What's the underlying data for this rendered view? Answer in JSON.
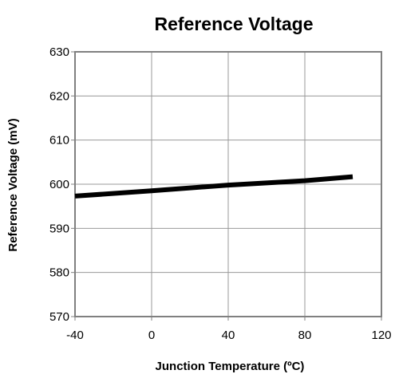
{
  "chart_data": {
    "type": "line",
    "title": "Reference Voltage",
    "xlabel": "Junction Temperature (ºC)",
    "ylabel": "Reference Voltage (mV)",
    "xlim": [
      -40,
      120
    ],
    "ylim": [
      570,
      630
    ],
    "xticks": [
      "-40",
      "0",
      "40",
      "80",
      "120"
    ],
    "yticks": [
      "570",
      "580",
      "590",
      "600",
      "610",
      "620",
      "630"
    ],
    "grid": true,
    "series": [
      {
        "x": [
          -40,
          0,
          40,
          80,
          105
        ],
        "y": [
          597.3,
          598.5,
          599.8,
          600.8,
          601.7
        ]
      }
    ],
    "colors": {
      "line": "#000000",
      "grid": "#999999",
      "axis": "#808080",
      "background": "#ffffff"
    }
  }
}
